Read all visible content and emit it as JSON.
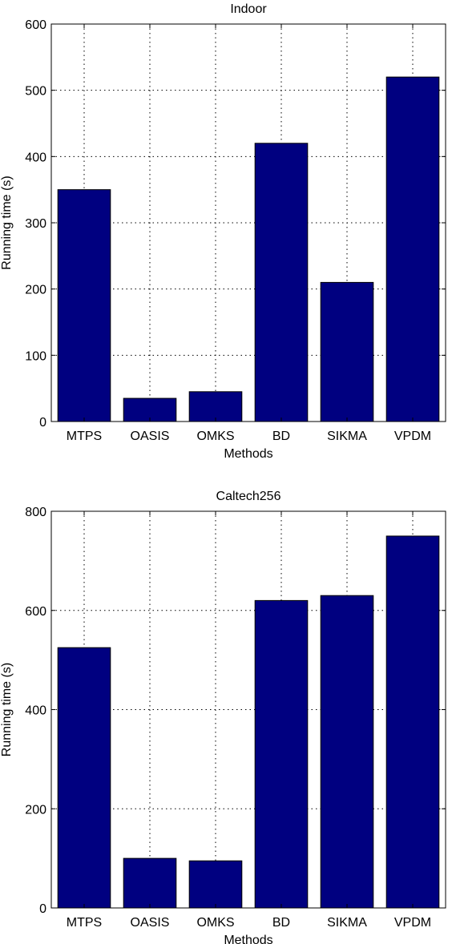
{
  "chart_data": [
    {
      "type": "bar",
      "title": "Indoor",
      "xlabel": "Methods",
      "ylabel": "Running time (s)",
      "categories": [
        "MTPS",
        "OASIS",
        "OMKS",
        "BD",
        "SIKMA",
        "VPDM"
      ],
      "values": [
        350,
        35,
        45,
        420,
        210,
        520
      ],
      "ylim": [
        0,
        600
      ],
      "yticks": [
        0,
        100,
        200,
        300,
        400,
        500,
        600
      ],
      "grid": true,
      "bar_color": "#000080"
    },
    {
      "type": "bar",
      "title": "Caltech256",
      "xlabel": "Methods",
      "ylabel": "Running time (s)",
      "categories": [
        "MTPS",
        "OASIS",
        "OMKS",
        "BD",
        "SIKMA",
        "VPDM"
      ],
      "values": [
        525,
        100,
        95,
        620,
        630,
        750
      ],
      "ylim": [
        0,
        800
      ],
      "yticks": [
        0,
        200,
        400,
        600,
        800
      ],
      "grid": true,
      "bar_color": "#000080"
    }
  ]
}
